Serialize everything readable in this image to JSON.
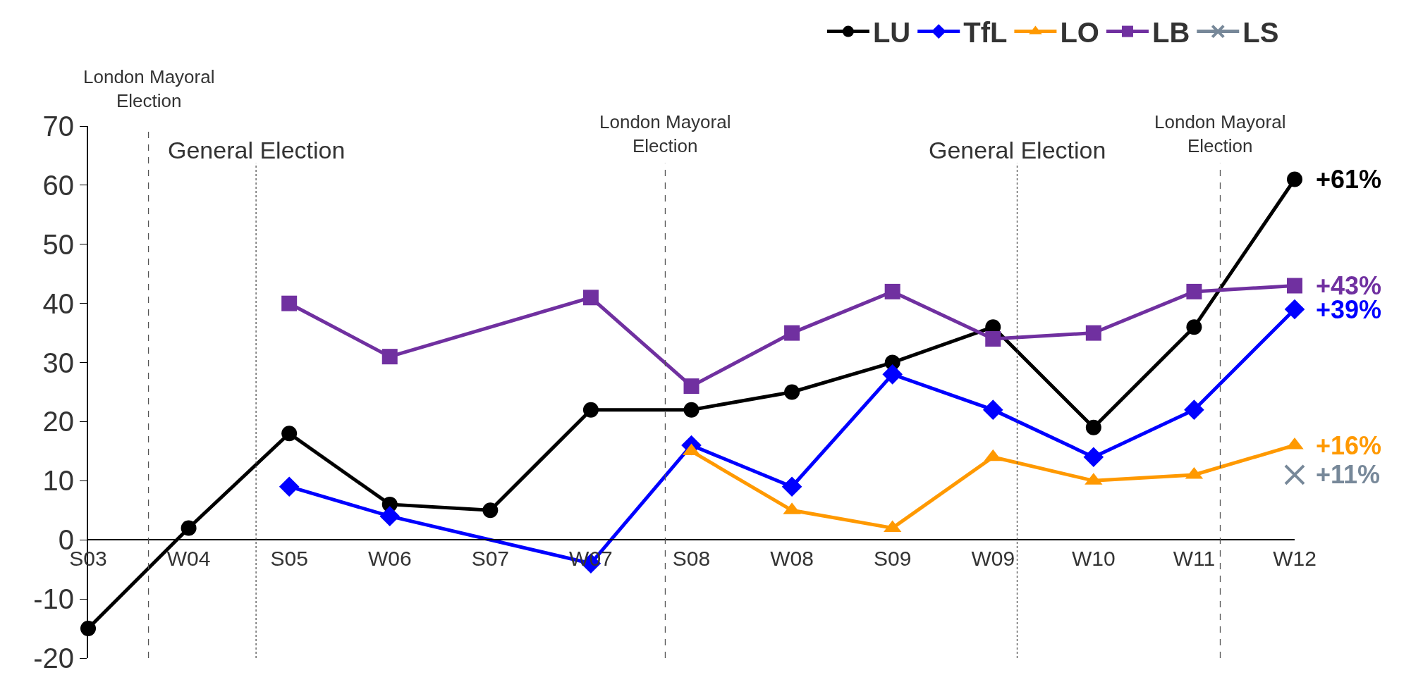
{
  "chart_data": {
    "type": "line",
    "categories": [
      "S03",
      "W04",
      "S05",
      "W06",
      "S07",
      "W07",
      "S08",
      "W08",
      "S09",
      "W09",
      "W10",
      "W11",
      "W12"
    ],
    "series": [
      {
        "name": "LU",
        "color": "#000000",
        "marker": "circle",
        "values": [
          -15,
          2,
          18,
          6,
          5,
          22,
          22,
          25,
          30,
          36,
          19,
          36,
          61
        ]
      },
      {
        "name": "TfL",
        "color": "#0000ff",
        "marker": "diamond",
        "values": [
          null,
          null,
          9,
          4,
          null,
          -4,
          16,
          9,
          28,
          22,
          14,
          22,
          39
        ]
      },
      {
        "name": "LO",
        "color": "#ff9900",
        "marker": "triangle",
        "values": [
          null,
          null,
          null,
          null,
          null,
          null,
          15,
          5,
          2,
          14,
          10,
          11,
          16
        ]
      },
      {
        "name": "LB",
        "color": "#7030a0",
        "marker": "square",
        "values": [
          null,
          null,
          40,
          31,
          null,
          41,
          26,
          35,
          42,
          34,
          35,
          42,
          43
        ]
      },
      {
        "name": "LS",
        "color": "#778899",
        "marker": "cross",
        "values": [
          null,
          null,
          null,
          null,
          null,
          null,
          null,
          null,
          null,
          null,
          null,
          null,
          11
        ]
      }
    ],
    "ylim": [
      -20,
      70
    ],
    "yticks": [
      -20,
      -10,
      0,
      10,
      20,
      30,
      40,
      50,
      60,
      70
    ],
    "legend": "top",
    "annotations": [
      "London Mayoral\nElection",
      "General Election",
      "London Mayoral\nElection",
      "General Election",
      "London Mayoral\nElection",
      {
        "text": "+61%",
        "x": "W12",
        "y": 61
      },
      {
        "text": "+43%",
        "x": "W12",
        "y": 43
      },
      {
        "text": "+39%",
        "x": "W12",
        "y": 39
      },
      {
        "text": "+16%",
        "x": "W12",
        "y": 16
      },
      {
        "text": "+11%",
        "x": "W12",
        "y": 11
      }
    ]
  }
}
